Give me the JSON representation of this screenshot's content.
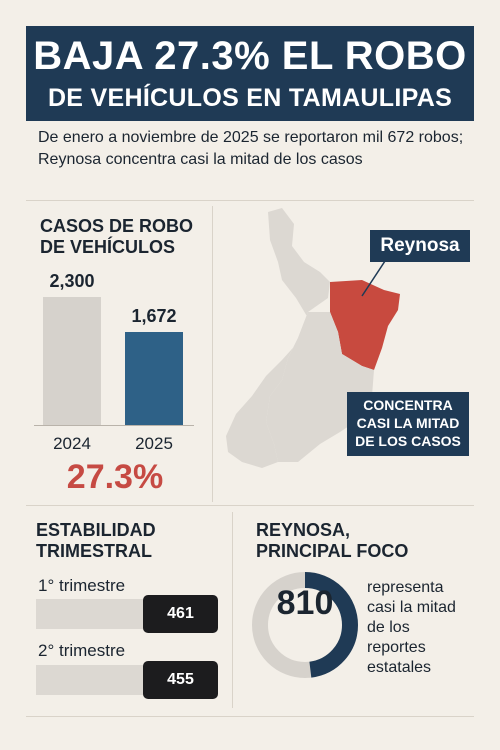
{
  "header": {
    "title_line1": "BAJA 27.3% EL ROBO",
    "title_line2": "DE VEHÍCULOS EN TAMAULIPAS",
    "subtitle": "De enero a noviembre de 2025 se reportaron mil 672 robos; Reynosa concentra casi la mitad de los casos"
  },
  "cases_section": {
    "title_line1": "CASOS DE ROBO",
    "title_line2": "DE VEHÍCULOS",
    "change_pct": "27.3%"
  },
  "chart_data": {
    "type": "bar",
    "categories": [
      "2024",
      "2025"
    ],
    "values": [
      2300,
      1672
    ],
    "value_labels": [
      "2,300",
      "1,672"
    ],
    "ylim": [
      0,
      2300
    ],
    "colors": [
      "#d6d2cc",
      "#2e6187"
    ]
  },
  "map": {
    "region_label": "Reynosa",
    "callout_line1": "CONCENTRA",
    "callout_line2": "CASI LA MITAD",
    "callout_line3": "DE LOS CASOS",
    "colors": {
      "state": "#dcd8d2",
      "highlight": "#c84a3f",
      "callout": "#1f3a55"
    }
  },
  "quarterly": {
    "title_line1": "ESTABILIDAD",
    "title_line2": "TRIMESTRAL",
    "items": [
      {
        "label": "1° trimestre",
        "value": "461"
      },
      {
        "label": "2° trimestre",
        "value": "455"
      }
    ]
  },
  "reynosa": {
    "title_line1": "REYNOSA,",
    "title_line2": "PRINCIPAL FOCO",
    "value": "810",
    "share_fraction": 0.48,
    "description_lines": [
      "representa",
      "casi la mitad",
      "de los",
      "reportes",
      "estatales"
    ]
  }
}
